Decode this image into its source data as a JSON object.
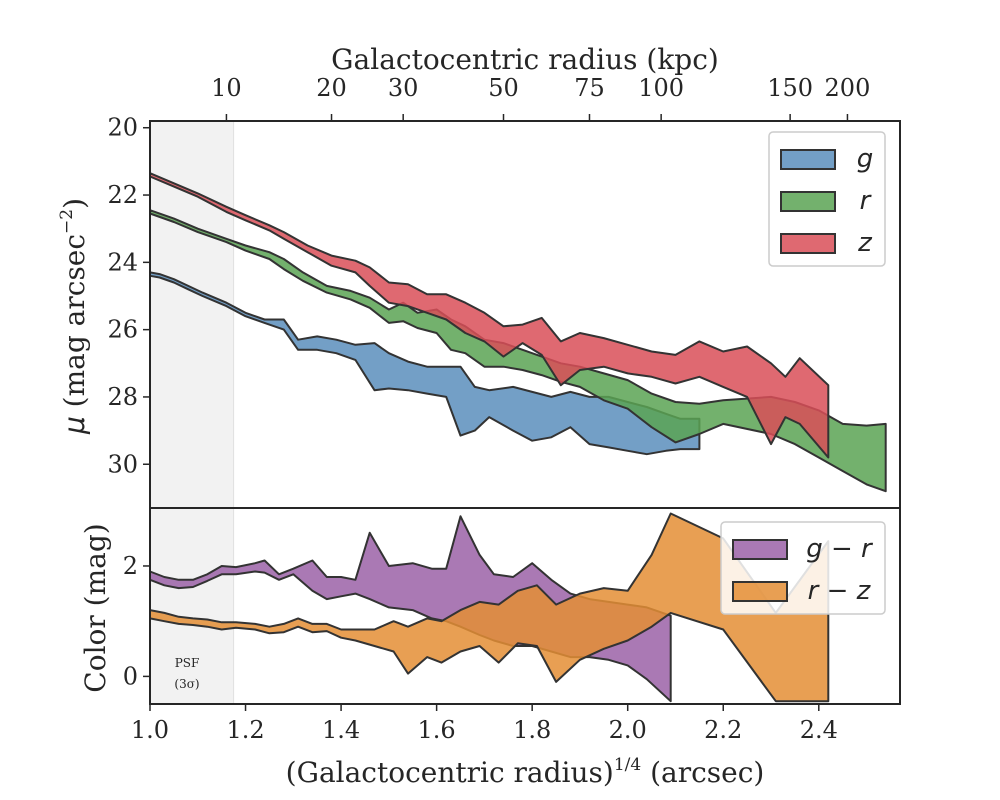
{
  "chart_data": [
    {
      "type": "area",
      "panel": "surface-brightness",
      "x_label_bottom": "(Galactocentric radius)",
      "x_label_bottom_sup": "1/4",
      "x_label_bottom_unit": "(arcsec)",
      "x_label_top": "Galactocentric radius (kpc)",
      "ylabel_sym": "μ",
      "ylabel_main": "(mag arcsec",
      "ylabel_sup": "−2",
      "ylabel_end": ")",
      "xlim": [
        1.0,
        2.57
      ],
      "ylim": [
        31.3,
        19.8
      ],
      "y_inverted": true,
      "y_ticks": [
        20,
        22,
        24,
        26,
        28,
        30
      ],
      "y_tick_labels": [
        "20",
        "22",
        "24",
        "26",
        "28",
        "30"
      ],
      "top_ticks": [
        {
          "label": "10",
          "x": 1.16
        },
        {
          "label": "20",
          "x": 1.38
        },
        {
          "label": "30",
          "x": 1.53
        },
        {
          "label": "50",
          "x": 1.74
        },
        {
          "label": "75",
          "x": 1.92
        },
        {
          "label": "100",
          "x": 2.07
        },
        {
          "label": "150",
          "x": 2.34
        },
        {
          "label": "200",
          "x": 2.46
        }
      ],
      "psf_shade_x": [
        1.0,
        1.175
      ],
      "legend": {
        "position": "upper right"
      },
      "series": [
        {
          "name": "g",
          "color": "#5b8ebc",
          "x": [
            1.0,
            1.02,
            1.05,
            1.08,
            1.11,
            1.16,
            1.2,
            1.24,
            1.28,
            1.31,
            1.35,
            1.39,
            1.43,
            1.47,
            1.5,
            1.54,
            1.58,
            1.62,
            1.65,
            1.68,
            1.71,
            1.76,
            1.8,
            1.84,
            1.88,
            1.92,
            1.96,
            2.0,
            2.04,
            2.08,
            2.11,
            2.15
          ],
          "low": [
            24.3,
            24.35,
            24.5,
            24.7,
            24.9,
            25.2,
            25.5,
            25.7,
            25.7,
            26.3,
            26.2,
            26.3,
            26.45,
            26.4,
            26.7,
            26.95,
            27.1,
            27.1,
            27.1,
            27.7,
            27.8,
            27.7,
            27.85,
            28.0,
            27.85,
            28.0,
            28.0,
            28.15,
            28.3,
            28.5,
            28.65,
            28.65
          ],
          "high": [
            24.4,
            24.45,
            24.6,
            24.8,
            25.0,
            25.3,
            25.6,
            25.8,
            26.0,
            26.6,
            26.6,
            26.7,
            26.9,
            27.8,
            27.75,
            27.8,
            27.9,
            28.0,
            29.15,
            29.0,
            28.6,
            29.0,
            29.3,
            29.2,
            28.9,
            29.4,
            29.5,
            29.6,
            29.7,
            29.6,
            29.55,
            29.55
          ]
        },
        {
          "name": "r",
          "color": "#5aa354",
          "x": [
            1.0,
            1.05,
            1.1,
            1.16,
            1.2,
            1.25,
            1.28,
            1.32,
            1.37,
            1.42,
            1.46,
            1.5,
            1.53,
            1.56,
            1.6,
            1.63,
            1.66,
            1.7,
            1.74,
            1.78,
            1.82,
            1.86,
            1.9,
            1.95,
            2.0,
            2.05,
            2.1,
            2.15,
            2.2,
            2.3,
            2.35,
            2.4,
            2.45,
            2.5,
            2.54
          ],
          "low": [
            22.45,
            22.7,
            23.0,
            23.3,
            23.5,
            23.7,
            23.9,
            24.3,
            24.7,
            24.85,
            25.05,
            25.4,
            25.2,
            25.5,
            25.4,
            25.7,
            25.9,
            26.3,
            26.4,
            26.6,
            26.8,
            27.0,
            27.1,
            27.3,
            27.5,
            27.9,
            28.15,
            28.2,
            28.1,
            28.0,
            28.15,
            28.4,
            28.8,
            28.85,
            28.8
          ],
          "high": [
            22.55,
            22.8,
            23.1,
            23.4,
            23.65,
            23.9,
            24.2,
            24.55,
            24.9,
            25.1,
            25.35,
            25.8,
            25.75,
            25.95,
            26.1,
            26.6,
            26.7,
            27.1,
            27.1,
            27.2,
            27.35,
            27.55,
            27.7,
            28.1,
            28.35,
            28.9,
            29.35,
            29.1,
            28.8,
            29.1,
            29.4,
            29.8,
            30.2,
            30.6,
            30.8
          ]
        },
        {
          "name": "z",
          "color": "#d94f58",
          "x": [
            1.0,
            1.05,
            1.1,
            1.16,
            1.2,
            1.25,
            1.28,
            1.33,
            1.38,
            1.43,
            1.46,
            1.5,
            1.54,
            1.58,
            1.62,
            1.66,
            1.7,
            1.74,
            1.78,
            1.82,
            1.86,
            1.9,
            1.95,
            2.0,
            2.05,
            2.1,
            2.15,
            2.2,
            2.25,
            2.3,
            2.33,
            2.36,
            2.42
          ],
          "low": [
            21.35,
            21.65,
            21.95,
            22.35,
            22.6,
            22.9,
            23.1,
            23.5,
            23.8,
            23.95,
            24.15,
            24.6,
            24.65,
            24.95,
            24.95,
            25.2,
            25.5,
            25.9,
            25.85,
            25.65,
            26.35,
            26.1,
            26.25,
            26.45,
            26.65,
            26.75,
            26.35,
            26.65,
            26.5,
            27.0,
            27.4,
            26.85,
            27.65
          ],
          "high": [
            21.45,
            21.75,
            22.05,
            22.5,
            22.75,
            23.05,
            23.3,
            23.7,
            24.1,
            24.3,
            24.7,
            25.2,
            25.3,
            25.5,
            25.7,
            26.1,
            26.35,
            26.8,
            26.4,
            26.75,
            27.65,
            27.2,
            27.1,
            27.3,
            27.4,
            27.6,
            27.4,
            27.7,
            28.0,
            29.4,
            28.6,
            28.8,
            29.8
          ]
        }
      ]
    },
    {
      "type": "area",
      "panel": "color",
      "ylabel": "Color (mag)",
      "xlim": [
        1.0,
        2.57
      ],
      "ylim": [
        -0.5,
        3.05
      ],
      "y_ticks": [
        0,
        2
      ],
      "y_tick_labels": [
        "0",
        "2"
      ],
      "x_ticks": [
        1.0,
        1.2,
        1.4,
        1.6,
        1.8,
        2.0,
        2.2,
        2.4
      ],
      "x_tick_labels": [
        "1.0",
        "1.2",
        "1.4",
        "1.6",
        "1.8",
        "2.0",
        "2.2",
        "2.4"
      ],
      "psf_shade_x": [
        1.0,
        1.175
      ],
      "psf_label_line1": "PSF",
      "psf_label_line2": "(3σ)",
      "legend": {
        "position": "upper right"
      },
      "series": [
        {
          "name": "g − r",
          "color": "#9b62a7",
          "x": [
            1.0,
            1.03,
            1.06,
            1.09,
            1.12,
            1.15,
            1.18,
            1.22,
            1.24,
            1.27,
            1.3,
            1.34,
            1.37,
            1.4,
            1.43,
            1.46,
            1.5,
            1.55,
            1.59,
            1.62,
            1.65,
            1.69,
            1.72,
            1.76,
            1.8,
            1.84,
            1.88,
            1.92,
            1.96,
            2.0,
            2.04,
            2.09
          ],
          "low": [
            1.75,
            1.65,
            1.6,
            1.62,
            1.73,
            1.85,
            1.85,
            1.9,
            1.88,
            1.75,
            1.85,
            1.55,
            1.4,
            1.45,
            1.5,
            1.4,
            1.25,
            1.2,
            1.05,
            1.0,
            0.9,
            0.75,
            0.65,
            0.55,
            0.55,
            0.45,
            0.35,
            0.35,
            0.3,
            0.2,
            -0.05,
            -0.45
          ],
          "high": [
            1.9,
            1.8,
            1.75,
            1.75,
            1.85,
            2.0,
            1.98,
            2.05,
            2.1,
            1.85,
            1.95,
            2.1,
            1.8,
            1.8,
            1.75,
            2.6,
            2.0,
            2.05,
            1.95,
            1.95,
            2.9,
            2.2,
            1.85,
            1.8,
            2.05,
            1.75,
            1.5,
            1.4,
            1.35,
            1.3,
            1.25,
            1.1
          ]
        },
        {
          "name": "r − z",
          "color": "#e48e35",
          "x": [
            1.0,
            1.03,
            1.06,
            1.09,
            1.12,
            1.15,
            1.18,
            1.22,
            1.25,
            1.28,
            1.31,
            1.34,
            1.37,
            1.4,
            1.43,
            1.47,
            1.51,
            1.54,
            1.58,
            1.61,
            1.65,
            1.69,
            1.73,
            1.77,
            1.81,
            1.85,
            1.9,
            1.95,
            2.0,
            2.05,
            2.09,
            2.2,
            2.31,
            2.42
          ],
          "low": [
            1.05,
            1.0,
            0.95,
            0.93,
            0.9,
            0.85,
            0.88,
            0.85,
            0.78,
            0.8,
            0.9,
            0.8,
            0.82,
            0.7,
            0.65,
            0.55,
            0.45,
            0.05,
            0.35,
            0.25,
            0.45,
            0.55,
            0.25,
            0.6,
            0.55,
            -0.1,
            0.3,
            0.5,
            0.65,
            0.9,
            1.15,
            0.85,
            -0.45,
            -0.45
          ],
          "high": [
            1.2,
            1.15,
            1.08,
            1.05,
            1.03,
            0.98,
            0.98,
            0.95,
            0.9,
            0.95,
            1.05,
            0.95,
            0.95,
            0.85,
            0.85,
            0.85,
            1.0,
            0.9,
            1.05,
            1.0,
            1.2,
            1.35,
            1.3,
            1.55,
            1.65,
            1.3,
            1.5,
            1.6,
            1.55,
            2.2,
            2.95,
            2.5,
            1.15,
            2.45
          ]
        }
      ]
    }
  ]
}
